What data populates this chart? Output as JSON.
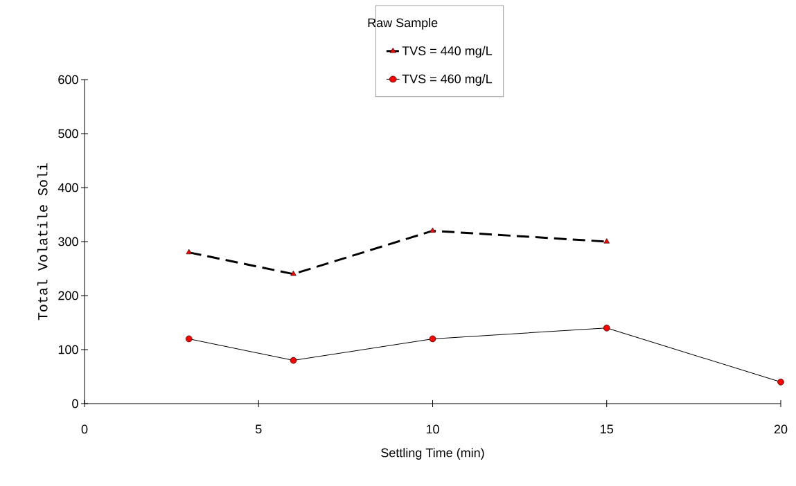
{
  "chart_data": {
    "type": "line",
    "xlabel": "Settling Time (min)",
    "ylabel": "Total Volatile Soli",
    "legend_title": "Raw Sample",
    "xlim": [
      0,
      20
    ],
    "ylim": [
      0,
      600
    ],
    "xticks": [
      0,
      5,
      10,
      15,
      20
    ],
    "yticks": [
      0,
      100,
      200,
      300,
      400,
      500,
      600
    ],
    "grid": false,
    "legend": "top",
    "series": [
      {
        "name": "TVS = 440 mg/L",
        "color": "#ff0000",
        "marker": "triangle",
        "line_style": "dashed",
        "x": [
          3,
          6,
          10,
          15
        ],
        "values": [
          280,
          240,
          320,
          300
        ]
      },
      {
        "name": "TVS = 460 mg/L",
        "color": "#ff0000",
        "marker": "circle",
        "line_style": "solid",
        "x": [
          3,
          6,
          10,
          15,
          20
        ],
        "values": [
          120,
          80,
          120,
          140,
          40
        ]
      }
    ]
  }
}
